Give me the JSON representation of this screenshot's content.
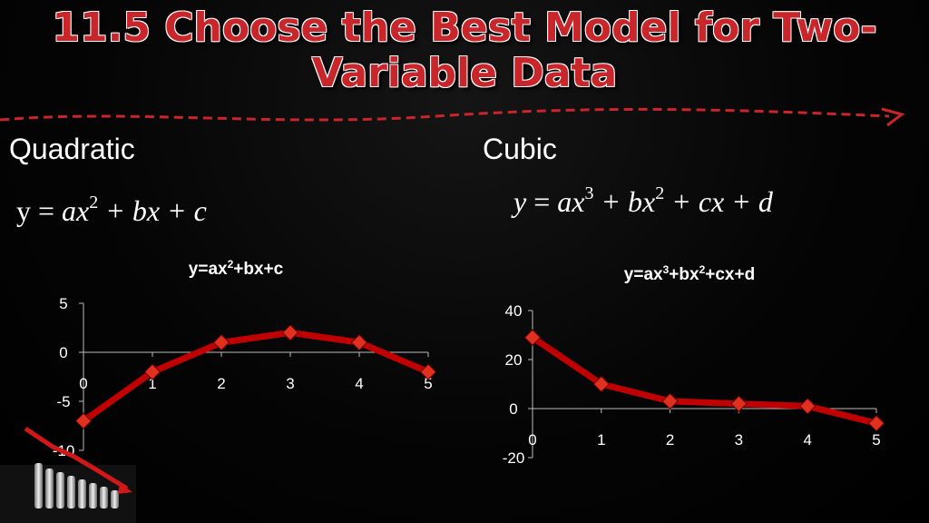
{
  "slide": {
    "title": "11.5 Choose the Best Model for Two-Variable Data",
    "accent_color": "#c8262a"
  },
  "left": {
    "label": "Quadratic",
    "formula": {
      "y": "y",
      "eq": " = ",
      "a": "ax",
      "a_exp": "2",
      "b": " + bx + c"
    }
  },
  "right": {
    "label": "Cubic",
    "formula": {
      "y": "y",
      "eq": " = ",
      "a": "ax",
      "a_exp": "3",
      "b": " + bx",
      "b_exp": "2",
      "c": " + cx + d"
    }
  },
  "chart_data": [
    {
      "type": "line",
      "title": {
        "t1": "y=ax",
        "e1": "2",
        "t2": "+bx+c"
      },
      "x": [
        0,
        1,
        2,
        3,
        4,
        5
      ],
      "values": [
        -7,
        -2,
        1,
        2,
        1,
        -2
      ],
      "xticks": [
        "0",
        "1",
        "2",
        "3",
        "4",
        "5"
      ],
      "yticks": [
        "5",
        "0",
        "-5",
        "-10"
      ],
      "ytick_values": [
        5,
        0,
        -5,
        -10
      ],
      "ylim": [
        -10,
        5
      ],
      "xlim": [
        0,
        5
      ],
      "grid": false,
      "line_color": "#c00000",
      "marker_color": "#e03020"
    },
    {
      "type": "line",
      "title": {
        "t1": "y=ax",
        "e1": "3",
        "t2": "+bx",
        "e2": "2",
        "t3": "+cx+d"
      },
      "x": [
        0,
        1,
        2,
        3,
        4,
        5
      ],
      "values": [
        29,
        10,
        3,
        2,
        1,
        -6
      ],
      "xticks": [
        "0",
        "1",
        "2",
        "3",
        "4",
        "5"
      ],
      "yticks": [
        "40",
        "20",
        "0",
        "-20"
      ],
      "ytick_values": [
        40,
        20,
        0,
        -20
      ],
      "ylim": [
        -20,
        40
      ],
      "xlim": [
        0,
        5
      ],
      "grid": false,
      "line_color": "#c00000",
      "marker_color": "#e03020"
    }
  ]
}
